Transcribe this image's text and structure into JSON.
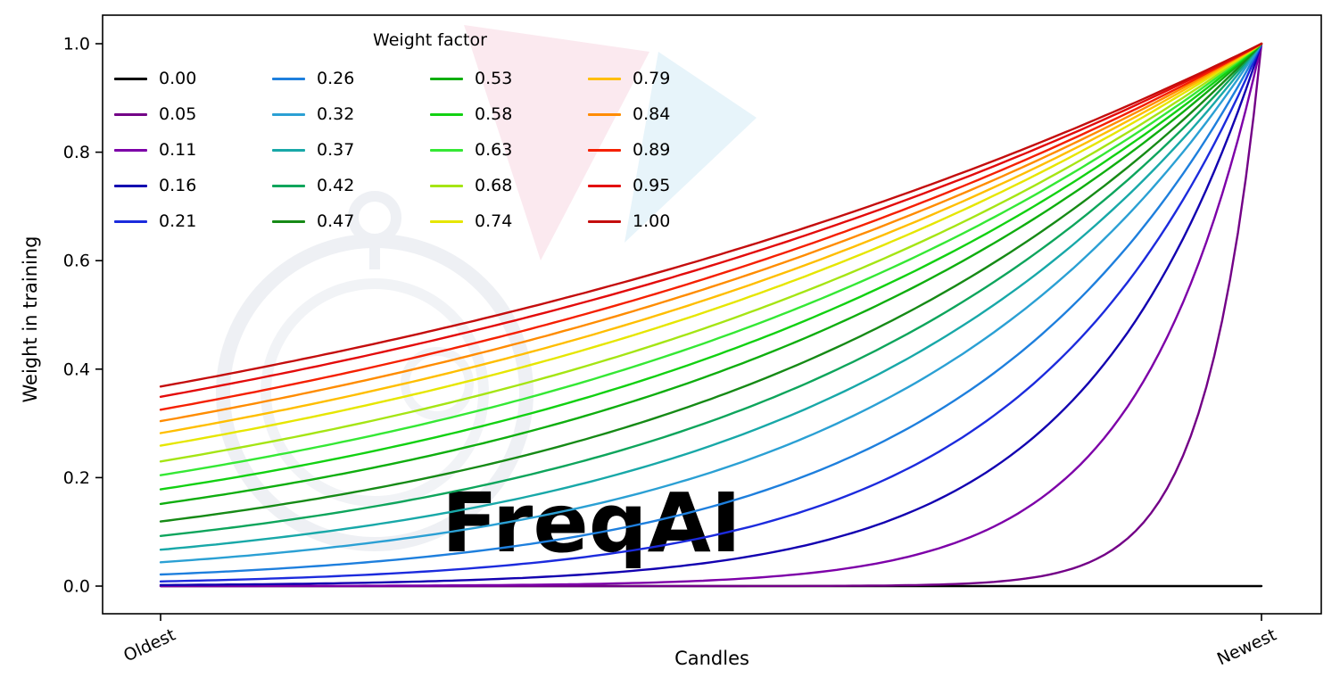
{
  "figure": {
    "watermark": "FreqAI"
  },
  "chart_data": {
    "type": "line",
    "title": "",
    "xlabel": "Candles",
    "ylabel": "Weight in training",
    "x_ticks": [
      "Oldest",
      "Newest"
    ],
    "y_ticks": [
      "0.0",
      "0.2",
      "0.4",
      "0.6",
      "0.8",
      "1.0"
    ],
    "xlim": [
      0,
      1
    ],
    "ylim": [
      0,
      1
    ],
    "grid": false,
    "legend": {
      "title": "Weight factor",
      "position": "upper left",
      "ncol": 4,
      "frame": false
    },
    "formula": "weight(x) = exp(-(1 - x) / weight_factor) with x from 0 (Oldest) to 1 (Newest); weight_factor = 0 gives a constant 0 line; all other curves end at 1.0 at Newest",
    "series": [
      {
        "label": "0.00",
        "weight_factor": 0.0,
        "color": "#000000",
        "y_oldest": 0.0,
        "y_newest": 0.0
      },
      {
        "label": "0.05",
        "weight_factor": 0.05,
        "color": "#730087",
        "y_oldest": 0.0,
        "y_newest": 1.0
      },
      {
        "label": "0.11",
        "weight_factor": 0.11,
        "color": "#7d00a8",
        "y_oldest": 0.0001,
        "y_newest": 1.0
      },
      {
        "label": "0.16",
        "weight_factor": 0.16,
        "color": "#1200b0",
        "y_oldest": 0.002,
        "y_newest": 1.0
      },
      {
        "label": "0.21",
        "weight_factor": 0.21,
        "color": "#1c2bdd",
        "y_oldest": 0.009,
        "y_newest": 1.0
      },
      {
        "label": "0.26",
        "weight_factor": 0.26,
        "color": "#1e7fdd",
        "y_oldest": 0.021,
        "y_newest": 1.0
      },
      {
        "label": "0.32",
        "weight_factor": 0.32,
        "color": "#2ba0d4",
        "y_oldest": 0.044,
        "y_newest": 1.0
      },
      {
        "label": "0.37",
        "weight_factor": 0.37,
        "color": "#18a8a8",
        "y_oldest": 0.067,
        "y_newest": 1.0
      },
      {
        "label": "0.42",
        "weight_factor": 0.42,
        "color": "#0ea55c",
        "y_oldest": 0.092,
        "y_newest": 1.0
      },
      {
        "label": "0.47",
        "weight_factor": 0.47,
        "color": "#168a16",
        "y_oldest": 0.119,
        "y_newest": 1.0
      },
      {
        "label": "0.53",
        "weight_factor": 0.53,
        "color": "#0fae0f",
        "y_oldest": 0.152,
        "y_newest": 1.0
      },
      {
        "label": "0.58",
        "weight_factor": 0.58,
        "color": "#12d112",
        "y_oldest": 0.178,
        "y_newest": 1.0
      },
      {
        "label": "0.63",
        "weight_factor": 0.63,
        "color": "#35e835",
        "y_oldest": 0.204,
        "y_newest": 1.0
      },
      {
        "label": "0.68",
        "weight_factor": 0.68,
        "color": "#a5e514",
        "y_oldest": 0.23,
        "y_newest": 1.0
      },
      {
        "label": "0.74",
        "weight_factor": 0.74,
        "color": "#e6e600",
        "y_oldest": 0.259,
        "y_newest": 1.0
      },
      {
        "label": "0.79",
        "weight_factor": 0.79,
        "color": "#ffbe00",
        "y_oldest": 0.282,
        "y_newest": 1.0
      },
      {
        "label": "0.84",
        "weight_factor": 0.84,
        "color": "#ff8c00",
        "y_oldest": 0.304,
        "y_newest": 1.0
      },
      {
        "label": "0.89",
        "weight_factor": 0.89,
        "color": "#f52000",
        "y_oldest": 0.325,
        "y_newest": 1.0
      },
      {
        "label": "0.95",
        "weight_factor": 0.95,
        "color": "#e30b0b",
        "y_oldest": 0.349,
        "y_newest": 1.0
      },
      {
        "label": "1.00",
        "weight_factor": 1.0,
        "color": "#c40d0d",
        "y_oldest": 0.368,
        "y_newest": 1.0
      }
    ]
  }
}
